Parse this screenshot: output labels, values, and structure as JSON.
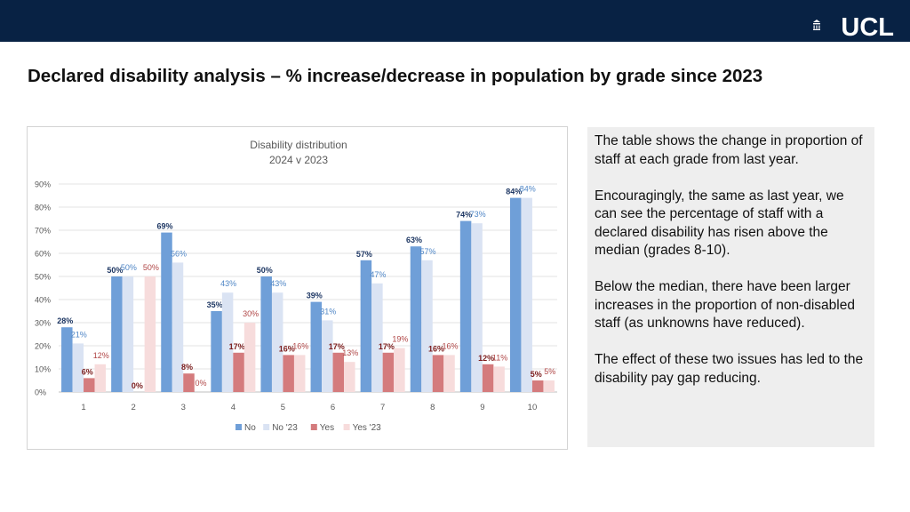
{
  "header": {
    "logo_text": "UCL"
  },
  "slide": {
    "title": "Declared disability analysis – % increase/decrease in population by grade since 2023"
  },
  "panel": {
    "paragraphs": [
      "The table shows the change in proportion of staff at each grade from last year.",
      "Encouragingly, the same as last year, we can see the percentage of staff with a declared disability has risen above the median (grades 8-10).",
      "Below the median, there have been larger increases in the proportion of non-disabled staff (as unknowns have reduced).",
      "The effect of these two issues has led to the disability pay gap reducing."
    ]
  },
  "chart_data": {
    "type": "bar",
    "title": [
      "Disability distribution",
      "2024 v 2023"
    ],
    "categories": [
      "1",
      "2",
      "3",
      "4",
      "5",
      "6",
      "7",
      "8",
      "9",
      "10"
    ],
    "ylim": [
      0,
      90
    ],
    "yticks": [
      0,
      10,
      20,
      30,
      40,
      50,
      60,
      70,
      80,
      90
    ],
    "ytick_labels": [
      "0%",
      "10%",
      "20%",
      "30%",
      "40%",
      "50%",
      "60%",
      "70%",
      "80%",
      "90%"
    ],
    "legend_position": "bottom",
    "grid": true,
    "series": [
      {
        "name": "No",
        "color": "#6f9fd8",
        "label_color": "#1f3864",
        "label_bold": true,
        "values": [
          28,
          50,
          69,
          35,
          50,
          39,
          57,
          63,
          74,
          84
        ]
      },
      {
        "name": "No '23",
        "color": "#dae3f3",
        "label_color": "#4f86c6",
        "label_bold": false,
        "values": [
          21,
          50,
          56,
          43,
          43,
          31,
          47,
          57,
          73,
          84
        ]
      },
      {
        "name": "Yes",
        "color": "#d47b7d",
        "label_color": "#7b1c1c",
        "label_bold": true,
        "values": [
          6,
          0,
          8,
          17,
          16,
          17,
          17,
          16,
          12,
          5
        ]
      },
      {
        "name": "Yes '23",
        "color": "#f7dcdc",
        "label_color": "#b04646",
        "label_bold": false,
        "values": [
          12,
          50,
          0,
          30,
          16,
          13,
          19,
          16,
          11,
          5
        ]
      }
    ]
  }
}
